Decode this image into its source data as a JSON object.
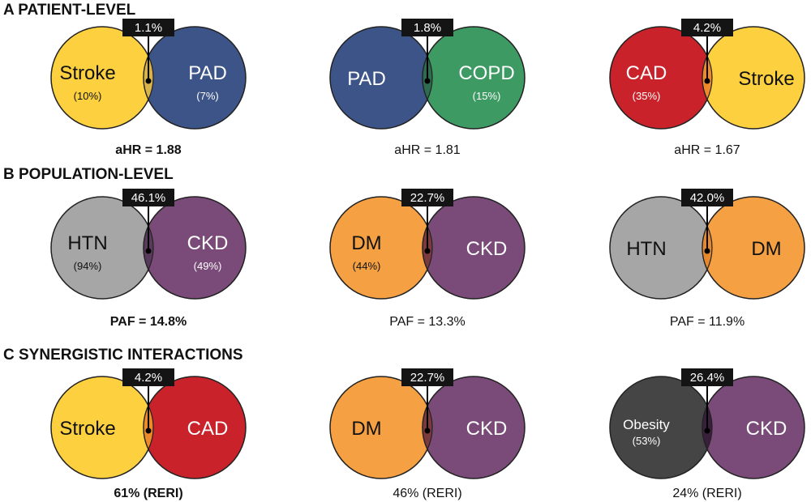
{
  "colors": {
    "stroke_yellow": "#FCD03F",
    "pad_blue": "#3D5488",
    "copd_green": "#3C9A62",
    "cad_red": "#C9222A",
    "htn_gray": "#A6A6A6",
    "ckd_purple": "#7A4A78",
    "dm_orange": "#F4A043",
    "obesity_dark": "#454545",
    "outline": "#222222",
    "label_box": "#141414"
  },
  "sections": [
    {
      "title": "A PATIENT-LEVEL",
      "diagrams": [
        {
          "left": {
            "name": "Stroke",
            "pct": "(10%)",
            "color": "#FCD03F",
            "text_color": "#111111"
          },
          "right": {
            "name": "PAD",
            "pct": "(7%)",
            "color": "#3D5488",
            "text_color": "#ffffff"
          },
          "overlap": "1.1%",
          "overlap_color": "#D8B24A",
          "caption": "aHR = 1.88",
          "caption_bold": true
        },
        {
          "left": {
            "name": "PAD",
            "pct": "",
            "color": "#3D5488",
            "text_color": "#ffffff"
          },
          "right": {
            "name": "COPD",
            "pct": "(15%)",
            "color": "#3C9A62",
            "text_color": "#ffffff"
          },
          "overlap": "1.8%",
          "overlap_color": "#2F6B4E",
          "caption": "aHR = 1.81",
          "caption_bold": false
        },
        {
          "left": {
            "name": "CAD",
            "pct": "(35%)",
            "color": "#C9222A",
            "text_color": "#ffffff"
          },
          "right": {
            "name": "Stroke",
            "pct": "",
            "color": "#FCD03F",
            "text_color": "#111111"
          },
          "overlap": "4.2%",
          "overlap_color": "#EE8A2A",
          "caption": "aHR = 1.67",
          "caption_bold": false
        }
      ]
    },
    {
      "title": "B POPULATION-LEVEL",
      "diagrams": [
        {
          "left": {
            "name": "HTN",
            "pct": "(94%)",
            "color": "#A6A6A6",
            "text_color": "#111111"
          },
          "right": {
            "name": "CKD",
            "pct": "(49%)",
            "color": "#7A4A78",
            "text_color": "#ffffff"
          },
          "overlap": "46.1%",
          "overlap_color": "#5A3A5C",
          "caption": "PAF = 14.8%",
          "caption_bold": true
        },
        {
          "left": {
            "name": "DM",
            "pct": "(44%)",
            "color": "#F4A043",
            "text_color": "#111111"
          },
          "right": {
            "name": "CKD",
            "pct": "",
            "color": "#7A4A78",
            "text_color": "#ffffff"
          },
          "overlap": "22.7%",
          "overlap_color": "#7B3A3E",
          "caption": "PAF = 13.3%",
          "caption_bold": false
        },
        {
          "left": {
            "name": "HTN",
            "pct": "",
            "color": "#A6A6A6",
            "text_color": "#111111"
          },
          "right": {
            "name": "DM",
            "pct": "",
            "color": "#F4A043",
            "text_color": "#111111"
          },
          "overlap": "42.0%",
          "overlap_color": "#E6892E",
          "caption": "PAF = 11.9%",
          "caption_bold": false
        }
      ]
    },
    {
      "title": "C SYNERGISTIC INTERACTIONS",
      "diagrams": [
        {
          "left": {
            "name": "Stroke",
            "pct": "",
            "color": "#FCD03F",
            "text_color": "#111111"
          },
          "right": {
            "name": "CAD",
            "pct": "",
            "color": "#C9222A",
            "text_color": "#ffffff"
          },
          "overlap": "4.2%",
          "overlap_color": "#EE8A2A",
          "caption": "61% (RERI)",
          "caption_bold": true
        },
        {
          "left": {
            "name": "DM",
            "pct": "",
            "color": "#F4A043",
            "text_color": "#111111"
          },
          "right": {
            "name": "CKD",
            "pct": "",
            "color": "#7A4A78",
            "text_color": "#ffffff"
          },
          "overlap": "22.7%",
          "overlap_color": "#7B3A3E",
          "caption": "46% (RERI)",
          "caption_bold": false
        },
        {
          "left": {
            "name": "Obesity",
            "pct": "(53%)",
            "color": "#454545",
            "text_color": "#ffffff",
            "small": true
          },
          "right": {
            "name": "CKD",
            "pct": "",
            "color": "#7A4A78",
            "text_color": "#ffffff"
          },
          "overlap": "26.4%",
          "overlap_color": "#3A1F3C",
          "caption": "24% (RERI)",
          "caption_bold": false
        }
      ]
    }
  ]
}
